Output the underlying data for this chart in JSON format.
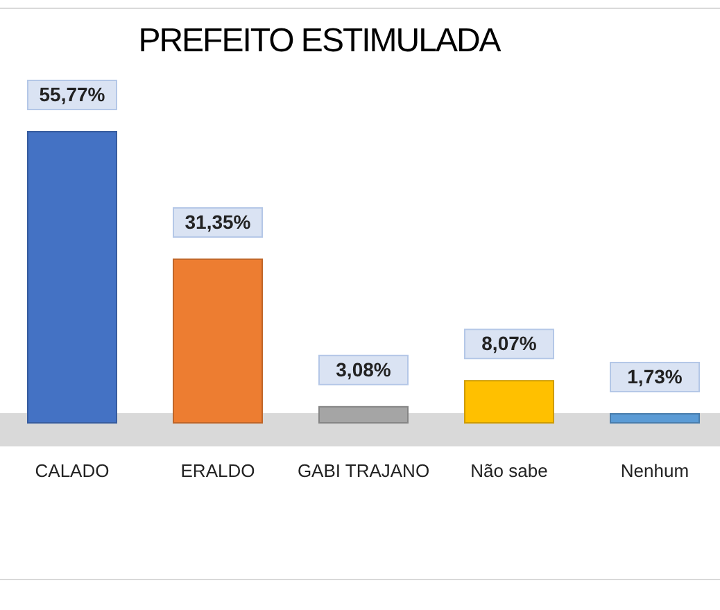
{
  "chart_data": {
    "type": "bar",
    "title": "PREFEITO ESTIMULADA",
    "categories": [
      "CALADO",
      "ERALDO",
      "GABI TRAJANO",
      "Não sabe",
      "Nenhum"
    ],
    "values": [
      55.77,
      31.35,
      3.08,
      8.07,
      1.73
    ],
    "colors": [
      "#4472c4",
      "#ed7d31",
      "#a5a5a5",
      "#ffc000",
      "#5b9bd5"
    ],
    "value_labels": [
      "55,77%",
      "31,35%",
      "3,08%",
      "8,07%",
      "1,73%"
    ]
  }
}
